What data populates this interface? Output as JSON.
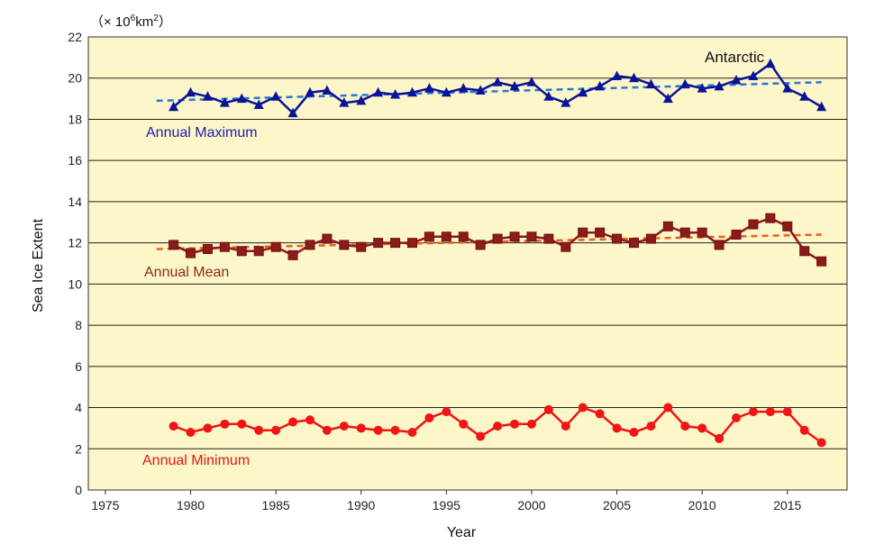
{
  "chart_data": {
    "type": "line",
    "unit_label_prefix": "（× 10",
    "unit_label_exp1": "6",
    "unit_label_mid": "km",
    "unit_label_exp2": "2",
    "unit_label_suffix": "）",
    "ylabel": "Sea Ice Extent",
    "xlabel": "Year",
    "xlim": [
      1974,
      1938
    ],
    "x_range": [
      1974,
      2018.5
    ],
    "ylim": [
      0,
      22
    ],
    "x_ticks": [
      1975,
      1980,
      1985,
      1990,
      1995,
      2000,
      2005,
      2010,
      2015
    ],
    "y_ticks": [
      0,
      2,
      4,
      6,
      8,
      10,
      12,
      14,
      16,
      18,
      20,
      22
    ],
    "grid": "horizontal",
    "plot_background": "#fdf6c8",
    "annotation": "Antarctic",
    "years": [
      1979,
      1980,
      1981,
      1982,
      1983,
      1984,
      1985,
      1986,
      1987,
      1988,
      1989,
      1990,
      1991,
      1992,
      1993,
      1994,
      1995,
      1996,
      1997,
      1998,
      1999,
      2000,
      2001,
      2002,
      2003,
      2004,
      2005,
      2006,
      2007,
      2008,
      2009,
      2010,
      2011,
      2012,
      2013,
      2014,
      2015,
      2016,
      2017
    ],
    "series": [
      {
        "name": "Annual Maximum",
        "key": "max",
        "color": "#0a1496",
        "label_color": "#1c1cb0",
        "marker": "triangle",
        "values": [
          18.6,
          19.3,
          19.1,
          18.8,
          19.0,
          18.7,
          19.1,
          18.3,
          19.3,
          19.4,
          18.8,
          18.9,
          19.3,
          19.2,
          19.3,
          19.5,
          19.3,
          19.5,
          19.4,
          19.8,
          19.6,
          19.8,
          19.1,
          18.8,
          19.3,
          19.6,
          20.1,
          20.0,
          19.7,
          19.0,
          19.7,
          19.5,
          19.6,
          19.9,
          20.1,
          20.7,
          19.5,
          19.1,
          18.6
        ],
        "trend": {
          "color": "#2a76d6",
          "x": [
            1978,
            2017
          ],
          "y": [
            18.9,
            19.8
          ]
        }
      },
      {
        "name": "Annual Mean",
        "key": "mean",
        "color": "#8c1b1b",
        "label_color": "#8c2a1a",
        "marker": "square",
        "values": [
          11.9,
          11.5,
          11.7,
          11.8,
          11.6,
          11.6,
          11.8,
          11.4,
          11.9,
          12.2,
          11.9,
          11.8,
          12.0,
          12.0,
          12.0,
          12.3,
          12.3,
          12.3,
          11.9,
          12.2,
          12.3,
          12.3,
          12.2,
          11.8,
          12.5,
          12.5,
          12.2,
          12.0,
          12.2,
          12.8,
          12.5,
          12.5,
          11.9,
          12.4,
          12.9,
          13.2,
          12.8,
          11.6,
          11.1
        ],
        "trend": {
          "color": "#e8601c",
          "x": [
            1978,
            2017
          ],
          "y": [
            11.7,
            12.4
          ]
        }
      },
      {
        "name": "Annual Minimum",
        "key": "min",
        "color": "#f01414",
        "label_color": "#e01818",
        "marker": "circle",
        "values": [
          3.1,
          2.8,
          3.0,
          3.2,
          3.2,
          2.9,
          2.9,
          3.3,
          3.4,
          2.9,
          3.1,
          3.0,
          2.9,
          2.9,
          2.8,
          3.5,
          3.8,
          3.2,
          2.6,
          3.1,
          3.2,
          3.2,
          3.9,
          3.1,
          4.0,
          3.7,
          3.0,
          2.8,
          3.1,
          4.0,
          3.1,
          3.0,
          2.5,
          3.5,
          3.8,
          3.8,
          3.8,
          2.9,
          2.3
        ]
      }
    ]
  }
}
